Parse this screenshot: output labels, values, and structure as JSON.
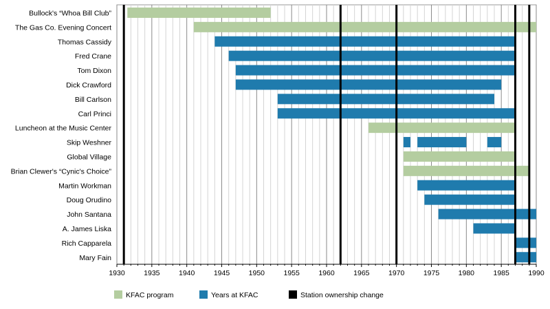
{
  "chart_data": {
    "type": "timeline",
    "xlim": [
      1930,
      1990
    ],
    "x_ticks": [
      1930,
      1935,
      1940,
      1945,
      1950,
      1955,
      1960,
      1965,
      1970,
      1975,
      1980,
      1985,
      1990
    ],
    "grid": "vertical lines every year, heavier every 5 years",
    "legend_position": "bottom",
    "colors": {
      "program": "#b4cda0",
      "years": "#1f7bad",
      "ownership": "#000000"
    },
    "legend": [
      {
        "key": "program",
        "label": "KFAC program"
      },
      {
        "key": "years",
        "label": "Years at KFAC"
      },
      {
        "key": "ownership",
        "label": "Station ownership change"
      }
    ],
    "ownership_changes": [
      1931,
      1962,
      1970,
      1987,
      1989
    ],
    "rows": [
      {
        "label": "Bullock's “Whoa Bill Club”",
        "kind": "program",
        "segments": [
          [
            1931.5,
            1952
          ]
        ]
      },
      {
        "label": "The Gas Co. Evening Concert",
        "kind": "program",
        "segments": [
          [
            1941,
            1990
          ]
        ]
      },
      {
        "label": "Thomas Cassidy",
        "kind": "years",
        "segments": [
          [
            1944,
            1987
          ]
        ]
      },
      {
        "label": "Fred Crane",
        "kind": "years",
        "segments": [
          [
            1946,
            1987
          ]
        ]
      },
      {
        "label": "Tom Dixon",
        "kind": "years",
        "segments": [
          [
            1947,
            1987
          ]
        ]
      },
      {
        "label": "Dick Crawford",
        "kind": "years",
        "segments": [
          [
            1947,
            1985
          ]
        ]
      },
      {
        "label": "Bill Carlson",
        "kind": "years",
        "segments": [
          [
            1953,
            1984
          ]
        ]
      },
      {
        "label": "Carl Princi",
        "kind": "years",
        "segments": [
          [
            1953,
            1987
          ]
        ]
      },
      {
        "label": "Luncheon at the Music Center",
        "kind": "program",
        "segments": [
          [
            1966,
            1987
          ]
        ]
      },
      {
        "label": "Skip Weshner",
        "kind": "years",
        "segments": [
          [
            1971,
            1972
          ],
          [
            1973,
            1980
          ],
          [
            1983,
            1985
          ]
        ]
      },
      {
        "label": "Global Village",
        "kind": "program",
        "segments": [
          [
            1971,
            1987
          ]
        ]
      },
      {
        "label": "Brian Clewer's “Cynic's Choice”",
        "kind": "program",
        "segments": [
          [
            1971,
            1989
          ]
        ]
      },
      {
        "label": "Martin Workman",
        "kind": "years",
        "segments": [
          [
            1973,
            1987
          ]
        ]
      },
      {
        "label": "Doug Orudino",
        "kind": "years",
        "segments": [
          [
            1974,
            1987
          ]
        ]
      },
      {
        "label": "John Santana",
        "kind": "years",
        "segments": [
          [
            1976,
            1990
          ]
        ]
      },
      {
        "label": "A. James Liska",
        "kind": "years",
        "segments": [
          [
            1981,
            1987
          ]
        ]
      },
      {
        "label": "Rich Capparela",
        "kind": "years",
        "segments": [
          [
            1987,
            1990
          ]
        ]
      },
      {
        "label": "Mary Fain",
        "kind": "years",
        "segments": [
          [
            1987,
            1990
          ]
        ]
      }
    ]
  }
}
